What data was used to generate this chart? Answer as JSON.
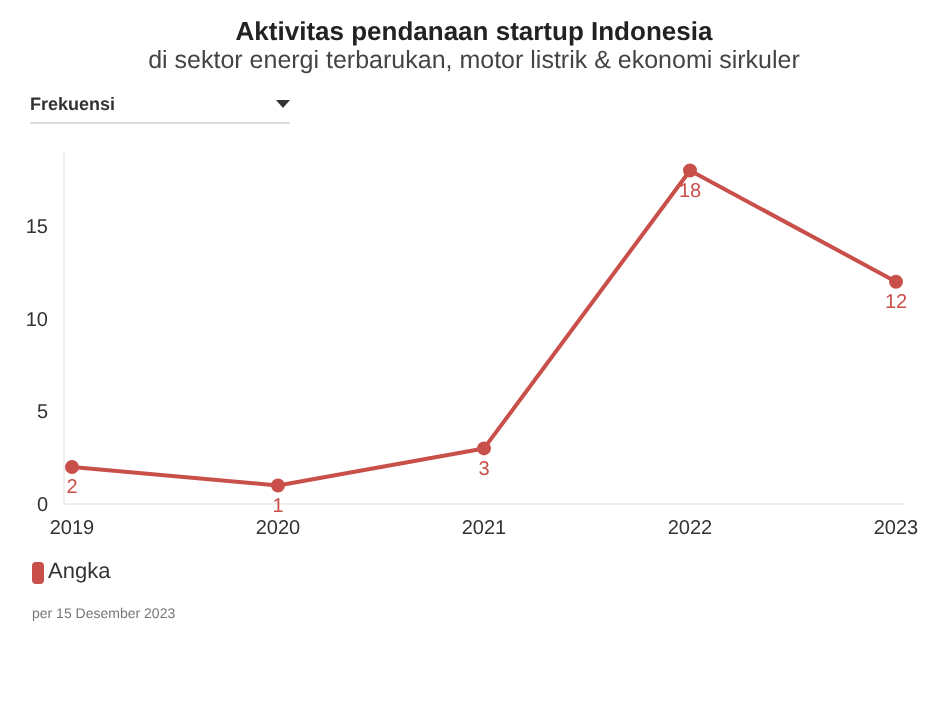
{
  "chart_data": {
    "type": "line",
    "title": "Aktivitas pendanaan startup Indonesia",
    "subtitle": "di sektor energi terbarukan, motor listrik & ekonomi sirkuler",
    "annotations": [
      "Frekuensi",
      "per 15 Desember 2023"
    ],
    "categories": [
      "2019",
      "2020",
      "2021",
      "2022",
      "2023"
    ],
    "series": [
      {
        "name": "Angka",
        "color": "#c9504a",
        "values": [
          2,
          1,
          3,
          18,
          12
        ]
      }
    ],
    "ylim": [
      0,
      19
    ],
    "yticks": [
      0,
      5,
      10,
      15
    ],
    "grid": false,
    "legend": "bottom",
    "marker": "circle",
    "line_style": "solid",
    "data_labels": true
  }
}
